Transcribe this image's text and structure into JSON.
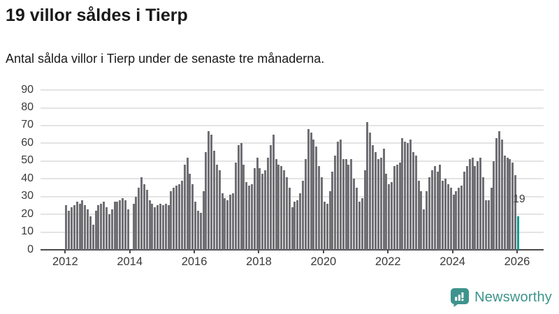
{
  "header": {
    "title": "19 villor såldes i Tierp",
    "subtitle": "Antal sålda villor i Tierp under de senaste tre månaderna."
  },
  "chart_data": {
    "type": "bar",
    "title": "19 villor såldes i Tierp",
    "subtitle": "Antal sålda villor i Tierp under de senaste tre månaderna.",
    "x_unit": "month",
    "start_year": 2012,
    "start_month": 1,
    "values": [
      25,
      22,
      24,
      25,
      27,
      26,
      28,
      25,
      23,
      19,
      14,
      22,
      25,
      26,
      27,
      24,
      20,
      23,
      27,
      27,
      28,
      29,
      28,
      23,
      0,
      26,
      30,
      35,
      41,
      37,
      34,
      28,
      26,
      24,
      25,
      26,
      25,
      26,
      25,
      33,
      35,
      36,
      37,
      39,
      48,
      52,
      43,
      37,
      27,
      22,
      21,
      33,
      55,
      67,
      65,
      56,
      48,
      45,
      32,
      29,
      28,
      31,
      32,
      49,
      59,
      60,
      48,
      38,
      36,
      37,
      46,
      52,
      46,
      43,
      45,
      52,
      59,
      65,
      51,
      48,
      47,
      45,
      41,
      35,
      24,
      27,
      28,
      32,
      39,
      51,
      68,
      66,
      62,
      58,
      47,
      41,
      27,
      26,
      33,
      44,
      53,
      61,
      62,
      51,
      51,
      48,
      51,
      40,
      35,
      27,
      29,
      45,
      72,
      66,
      59,
      55,
      51,
      52,
      57,
      43,
      37,
      38,
      47,
      48,
      49,
      63,
      61,
      60,
      62,
      55,
      53,
      39,
      33,
      23,
      33,
      41,
      45,
      47,
      44,
      48,
      39,
      40,
      37,
      35,
      31,
      33,
      35,
      36,
      44,
      47,
      51,
      52,
      47,
      50,
      52,
      41,
      28,
      28,
      35,
      50,
      63,
      67,
      62,
      53,
      52,
      51,
      49,
      42,
      19
    ],
    "highlight": {
      "index": 168,
      "value": 19,
      "label": "19"
    },
    "yticks": [
      0,
      10,
      20,
      30,
      40,
      50,
      60,
      70,
      80,
      90
    ],
    "xticks": [
      2012,
      2014,
      2016,
      2018,
      2020,
      2022,
      2024,
      2026
    ],
    "ylim": [
      0,
      94
    ],
    "grid": true,
    "legend": null,
    "bar_color": "#706f74",
    "highlight_color": "#0a9c93"
  },
  "annotation": {
    "text": "19"
  },
  "footer": {
    "brand": "Newsworthy",
    "brand_color": "#3d948c"
  }
}
